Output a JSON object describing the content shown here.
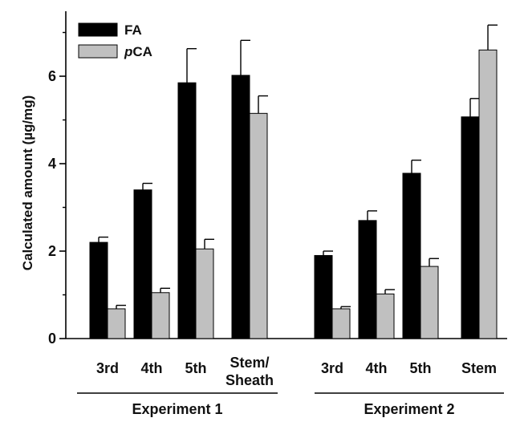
{
  "chart_data": {
    "type": "bar",
    "ylabel": "Calculated amount (µg/mg)",
    "ylim": [
      0,
      7.4
    ],
    "yticks": [
      0,
      2,
      4,
      6
    ],
    "groups": [
      {
        "label": "Experiment 1",
        "categories": [
          "3rd",
          "4th",
          "5th",
          "Stem/ Sheath"
        ]
      },
      {
        "label": "Experiment 2",
        "categories": [
          "3rd",
          "4th",
          "5th",
          "Stem"
        ]
      }
    ],
    "series": [
      {
        "name": "FA",
        "legend_html": "FA",
        "color": "#000000",
        "values": [
          2.2,
          3.4,
          5.85,
          6.02,
          1.9,
          2.7,
          3.78,
          5.07
        ],
        "errors": [
          0.12,
          0.15,
          0.78,
          0.8,
          0.1,
          0.22,
          0.3,
          0.42
        ]
      },
      {
        "name": "pCA",
        "legend_italic": "p",
        "legend_rest": "CA",
        "color": "#c0c0c0",
        "values": [
          0.68,
          1.05,
          2.05,
          5.15,
          0.68,
          1.02,
          1.65,
          6.6
        ],
        "errors": [
          0.08,
          0.1,
          0.22,
          0.4,
          0.05,
          0.1,
          0.18,
          0.57
        ]
      }
    ],
    "grid": false,
    "legend_position": "top-left"
  }
}
